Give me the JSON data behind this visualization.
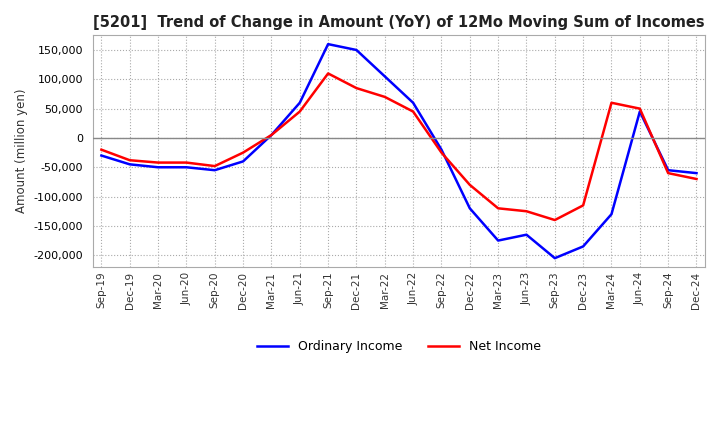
{
  "title": "[5201]  Trend of Change in Amount (YoY) of 12Mo Moving Sum of Incomes",
  "ylabel": "Amount (million yen)",
  "xlabels": [
    "Sep-19",
    "Dec-19",
    "Mar-20",
    "Jun-20",
    "Sep-20",
    "Dec-20",
    "Mar-21",
    "Jun-21",
    "Sep-21",
    "Dec-21",
    "Mar-22",
    "Jun-22",
    "Sep-22",
    "Dec-22",
    "Mar-23",
    "Jun-23",
    "Sep-23",
    "Dec-23",
    "Mar-24",
    "Jun-24",
    "Sep-24",
    "Dec-24"
  ],
  "ordinary_income": [
    -30000,
    -45000,
    -50000,
    -50000,
    -55000,
    -40000,
    5000,
    60000,
    160000,
    150000,
    105000,
    60000,
    -20000,
    -120000,
    -175000,
    -165000,
    -205000,
    -185000,
    -130000,
    45000,
    -55000,
    -60000
  ],
  "net_income": [
    -20000,
    -38000,
    -42000,
    -42000,
    -48000,
    -25000,
    5000,
    45000,
    110000,
    85000,
    70000,
    45000,
    -25000,
    -80000,
    -120000,
    -125000,
    -140000,
    -115000,
    60000,
    50000,
    -60000,
    -70000
  ],
  "ordinary_income_color": "#0000ff",
  "net_income_color": "#ff0000",
  "ylim": [
    -220000,
    175000
  ],
  "yticks": [
    -200000,
    -150000,
    -100000,
    -50000,
    0,
    50000,
    100000,
    150000
  ],
  "background_color": "#ffffff",
  "grid_color": "#aaaaaa",
  "legend_labels": [
    "Ordinary Income",
    "Net Income"
  ]
}
